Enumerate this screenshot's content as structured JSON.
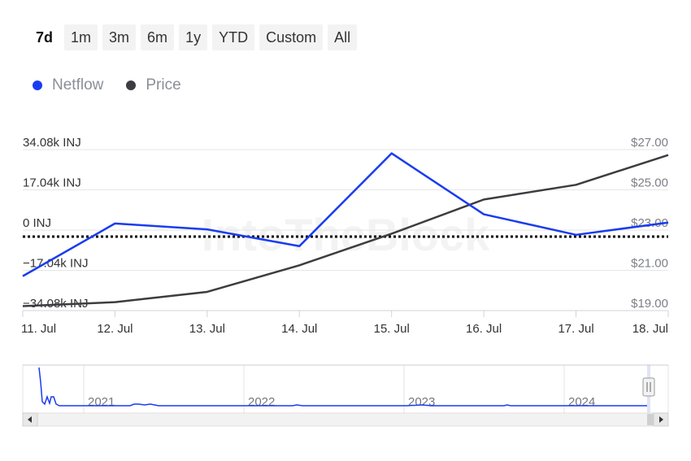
{
  "range_selector": {
    "buttons": [
      "7d",
      "1m",
      "3m",
      "6m",
      "1y",
      "YTD",
      "Custom",
      "All"
    ],
    "active": "7d"
  },
  "watermark": "IntoTheBlock",
  "colors": {
    "netflow": "#1a3cf0",
    "price": "#3c3d40",
    "zero_line": "#000000",
    "grid": "#e6e6e6"
  },
  "chart_data": {
    "type": "line",
    "x": [
      "11. Jul",
      "12. Jul",
      "13. Jul",
      "14. Jul",
      "15. Jul",
      "16. Jul",
      "17. Jul",
      "18. Jul"
    ],
    "series": [
      {
        "name": "Netflow",
        "axis": "left",
        "unit": "INJ",
        "values": [
          -19500,
          2800,
          300,
          -6800,
          32500,
          6700,
          -2000,
          3200
        ]
      },
      {
        "name": "Price",
        "axis": "right",
        "unit": "USD",
        "values": [
          19.22,
          19.42,
          19.93,
          21.25,
          22.82,
          24.52,
          25.25,
          26.73
        ]
      }
    ],
    "y_left": {
      "ticks": [
        34080,
        17040,
        0,
        -17040,
        -34080
      ],
      "tick_labels": [
        "34.08k INJ",
        "17.04k INJ",
        "0 INJ",
        "−17.04k INJ",
        "−34.08k INJ"
      ],
      "range": [
        -34080,
        34080
      ]
    },
    "y_right": {
      "ticks": [
        27,
        25,
        23,
        21,
        19
      ],
      "tick_labels": [
        "$27.00",
        "$25.00",
        "$23.00",
        "$21.00",
        "$19.00"
      ],
      "range": [
        19,
        27
      ]
    },
    "zero_line": "dotted",
    "legend": "top-left",
    "grid": true
  },
  "navigator": {
    "years": [
      "2021",
      "2022",
      "2023",
      "2024"
    ]
  }
}
